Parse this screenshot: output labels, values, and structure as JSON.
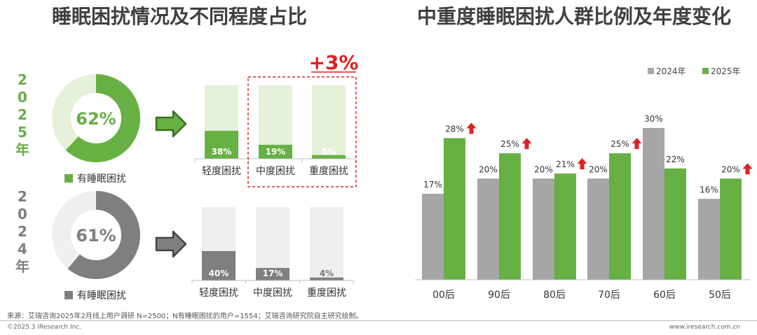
{
  "left_title": "睡眠困扰情况及不同程度占比",
  "right_title": "中重度睡眠困扰人群比例及年度变化",
  "colors": {
    "green": "#66b044",
    "green_light": "#e5f1d9",
    "gray": "#7f7f7f",
    "gray_bar": "#a6a6a6",
    "gray_light": "#efefef",
    "red": "#e02020"
  },
  "increase_label": "+3%",
  "chart_data": [
    {
      "type": "pie",
      "series_label": "2025年",
      "center_label": "62%",
      "values": [
        62,
        38
      ],
      "legend": "有睡眠困扰"
    },
    {
      "type": "bar",
      "series_label": "2025年",
      "categories": [
        "轻度困扰",
        "中度困扰",
        "重度困扰"
      ],
      "values": [
        38,
        19,
        5
      ],
      "value_labels": [
        "38%",
        "19%",
        "5%"
      ],
      "ylim": [
        0,
        100
      ]
    },
    {
      "type": "pie",
      "series_label": "2024年",
      "center_label": "61%",
      "values": [
        61,
        39
      ],
      "legend": "有睡眠困扰"
    },
    {
      "type": "bar",
      "series_label": "2024年",
      "categories": [
        "轻度困扰",
        "中度困扰",
        "重度困扰"
      ],
      "values": [
        40,
        17,
        4
      ],
      "value_labels": [
        "40%",
        "17%",
        "4%"
      ],
      "ylim": [
        0,
        100
      ]
    },
    {
      "type": "bar",
      "categories": [
        "00后",
        "90后",
        "80后",
        "70后",
        "60后",
        "50后"
      ],
      "series": [
        {
          "name": "2024年",
          "values": [
            17,
            20,
            20,
            20,
            30,
            16
          ],
          "labels": [
            "17%",
            "20%",
            "20%",
            "20%",
            "30%",
            "16%"
          ]
        },
        {
          "name": "2025年",
          "values": [
            28,
            25,
            21,
            25,
            22,
            20
          ],
          "labels": [
            "28%",
            "25%",
            "21%",
            "25%",
            "22%",
            "20%"
          ]
        }
      ],
      "increase_marked": [
        true,
        true,
        true,
        true,
        false,
        true
      ],
      "ylim": [
        0,
        33
      ],
      "legend_position": "top-right"
    }
  ],
  "footer": {
    "source": "来源：艾瑞咨询2025年2月线上用户调研 N=2500；N有睡眠困扰的用户=1554；艾瑞咨询研究院自主研究绘制。",
    "copyright": "©2025.3 iResearch Inc.",
    "website": "www.iresearch.com.cn"
  }
}
